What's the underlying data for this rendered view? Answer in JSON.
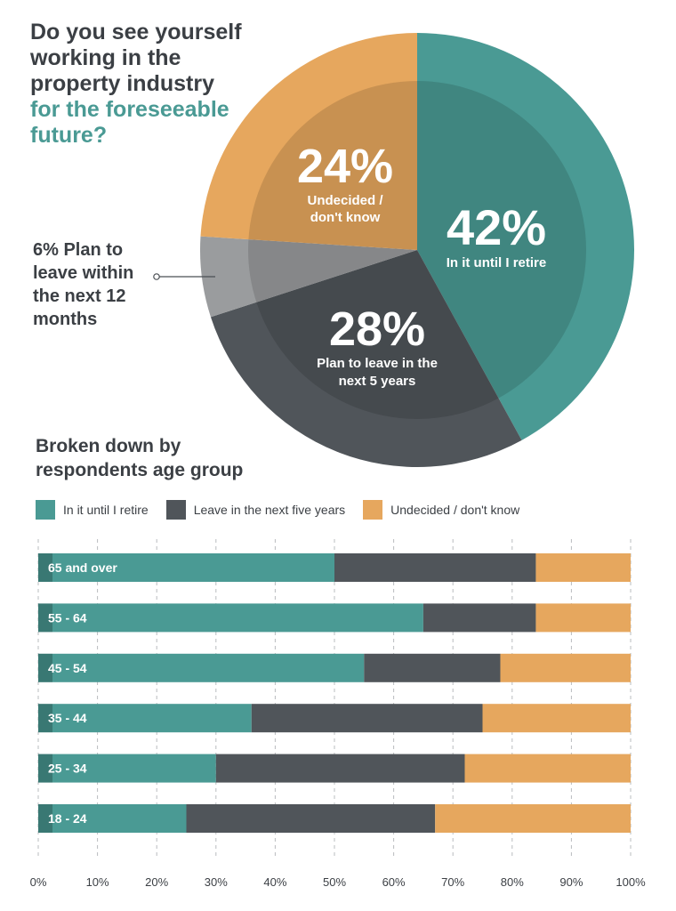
{
  "title": {
    "line1": "Do you see yourself",
    "line2": "working in the",
    "line3": "property industry",
    "line4": "for the foreseeable",
    "line5": "future?"
  },
  "callout": {
    "line1": "6% Plan to",
    "line2": "leave within",
    "line3": "the next 12",
    "line4": "months"
  },
  "colors": {
    "teal": "#4a9a94",
    "dark": "#50555a",
    "orange": "#e6a75e",
    "grey": "#9a9c9e",
    "text": "#3b3f44"
  },
  "chart_data": [
    {
      "type": "pie",
      "title": "Do you see yourself working in the property industry for the foreseeable future?",
      "slices": [
        {
          "name": "In it until I retire",
          "value": 42,
          "label": "42%",
          "text": "In it until I retire"
        },
        {
          "name": "Plan to leave in the next 5 years",
          "value": 28,
          "label": "28%",
          "text_lines": [
            "Plan to leave in the",
            "next 5 years"
          ]
        },
        {
          "name": "Plan to leave within the next 12 months",
          "value": 6
        },
        {
          "name": "Undecided / don't know",
          "value": 24,
          "label": "24%",
          "text_lines": [
            "Undecided /",
            "don't know"
          ]
        }
      ]
    },
    {
      "type": "bar",
      "orientation": "horizontal",
      "stacked": true,
      "title_lines": [
        "Broken down by",
        "respondents age group"
      ],
      "categories": [
        "65 and over",
        "55 - 64",
        "45 - 54",
        "35 - 44",
        "25 - 34",
        "18 - 24"
      ],
      "series": [
        {
          "name": "In it until I retire",
          "values": [
            50,
            65,
            55,
            36,
            30,
            25
          ]
        },
        {
          "name": "Leave in the next five years",
          "values": [
            34,
            19,
            23,
            39,
            42,
            42
          ]
        },
        {
          "name": "Undecided / don't know",
          "values": [
            16,
            16,
            22,
            25,
            28,
            33
          ]
        }
      ],
      "xlim": [
        0,
        100
      ],
      "xticks": [
        "0%",
        "10%",
        "20%",
        "30%",
        "40%",
        "50%",
        "60%",
        "70%",
        "80%",
        "90%",
        "100%"
      ],
      "grid": true
    }
  ]
}
